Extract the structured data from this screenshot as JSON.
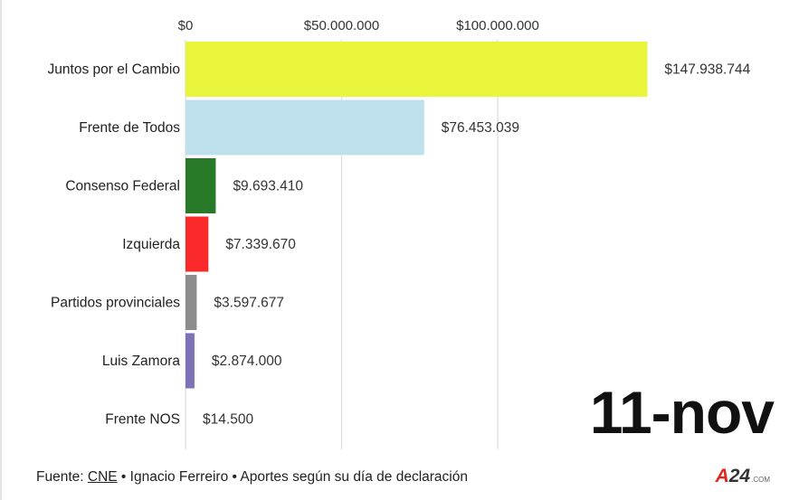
{
  "chart_data": {
    "type": "bar",
    "orientation": "horizontal",
    "categories": [
      "Juntos por el Cambio",
      "Frente de Todos",
      "Consenso Federal",
      "Izquierda",
      "Partidos provinciales",
      "Luis Zamora",
      "Frente NOS"
    ],
    "values": [
      147938744,
      76453039,
      9693410,
      7339670,
      3597677,
      2874000,
      14500
    ],
    "value_labels": [
      "$147.938.744",
      "$76.453.039",
      "$9.693.410",
      "$7.339.670",
      "$3.597.677",
      "$2.874.000",
      "$14.500"
    ],
    "colors": [
      "#e8f53a",
      "#bde0ec",
      "#287a28",
      "#fb2a2a",
      "#8c8c8c",
      "#7b72b7",
      "#cccccc"
    ],
    "x_ticks": [
      0,
      50000000,
      100000000
    ],
    "x_tick_labels": [
      "$0",
      "$50.000.000",
      "$100.000.000"
    ],
    "xlim": [
      0,
      150000000
    ],
    "x_axis_position": "top",
    "grid": true,
    "title": "",
    "xlabel": "",
    "ylabel": ""
  },
  "date_label": "11-nov",
  "footer": {
    "prefix": "Fuente: ",
    "source_link": "CNE",
    "rest": " • Ignacio Ferreiro • Aportes según su día de declaración"
  },
  "logo": {
    "mark_a": "A",
    "mark_rest": "24",
    "suffix": ".COM"
  }
}
